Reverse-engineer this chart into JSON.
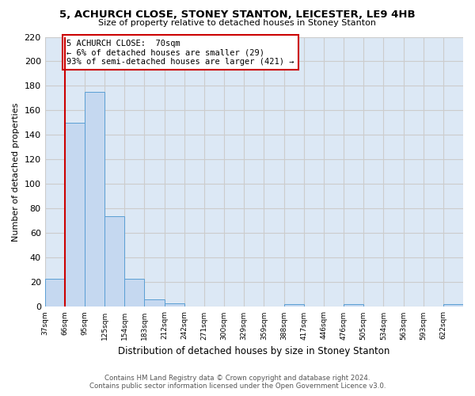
{
  "title": "5, ACHURCH CLOSE, STONEY STANTON, LEICESTER, LE9 4HB",
  "subtitle": "Size of property relative to detached houses in Stoney Stanton",
  "xlabel": "Distribution of detached houses by size in Stoney Stanton",
  "ylabel": "Number of detached properties",
  "bin_labels": [
    "37sqm",
    "66sqm",
    "95sqm",
    "125sqm",
    "154sqm",
    "183sqm",
    "212sqm",
    "242sqm",
    "271sqm",
    "300sqm",
    "329sqm",
    "359sqm",
    "388sqm",
    "417sqm",
    "446sqm",
    "476sqm",
    "505sqm",
    "534sqm",
    "563sqm",
    "593sqm",
    "622sqm"
  ],
  "bar_values": [
    23,
    150,
    175,
    74,
    23,
    6,
    3,
    0,
    0,
    0,
    0,
    0,
    2,
    0,
    0,
    2,
    0,
    0,
    0,
    0,
    2
  ],
  "bar_color": "#c5d8f0",
  "bar_edge_color": "#5a9fd4",
  "vline_color": "#cc0000",
  "annotation_title": "5 ACHURCH CLOSE:  70sqm",
  "annotation_line1": "← 6% of detached houses are smaller (29)",
  "annotation_line2": "93% of semi-detached houses are larger (421) →",
  "annotation_box_color": "#ffffff",
  "annotation_box_edge_color": "#cc0000",
  "ylim": [
    0,
    220
  ],
  "yticks": [
    0,
    20,
    40,
    60,
    80,
    100,
    120,
    140,
    160,
    180,
    200,
    220
  ],
  "grid_color": "#cccccc",
  "background_color": "#dce8f5",
  "footer_line1": "Contains HM Land Registry data © Crown copyright and database right 2024.",
  "footer_line2": "Contains public sector information licensed under the Open Government Licence v3.0."
}
